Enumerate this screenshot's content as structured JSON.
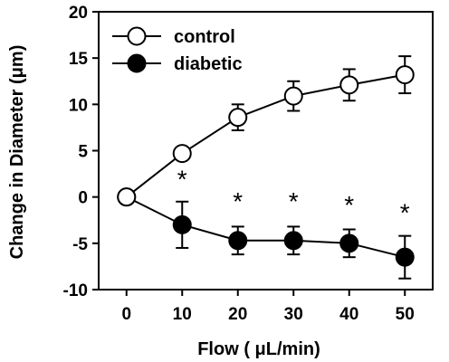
{
  "chart_data": {
    "type": "line",
    "title": "",
    "xlabel": "Flow ( μL/min)",
    "ylabel": "Change in Diameter (μm)",
    "x": [
      0,
      10,
      20,
      30,
      40,
      50
    ],
    "xlim": [
      -5,
      55
    ],
    "ylim": [
      -10,
      20
    ],
    "xticks": [
      "0",
      "10",
      "20",
      "30",
      "40",
      "50"
    ],
    "yticks": [
      "-10",
      "-5",
      "0",
      "5",
      "10",
      "15",
      "20"
    ],
    "grid": false,
    "legend_position": "top-left",
    "series": [
      {
        "name": "control",
        "marker": "open-circle",
        "values": [
          0,
          4.7,
          8.6,
          10.9,
          12.1,
          13.2
        ],
        "errors": [
          0,
          0.5,
          1.4,
          1.6,
          1.7,
          2.0
        ]
      },
      {
        "name": "diabetic",
        "marker": "filled-circle",
        "values": [
          0,
          -3.0,
          -4.7,
          -4.7,
          -5.0,
          -6.5
        ],
        "errors": [
          0,
          2.5,
          1.5,
          1.5,
          1.5,
          2.3
        ]
      }
    ],
    "annotations": [
      {
        "text": "*",
        "x": 10,
        "y": 1.0
      },
      {
        "text": "*",
        "x": 20,
        "y": -1.4
      },
      {
        "text": "*",
        "x": 30,
        "y": -1.4
      },
      {
        "text": "*",
        "x": 40,
        "y": -1.8
      },
      {
        "text": "*",
        "x": 50,
        "y": -2.6
      }
    ]
  }
}
